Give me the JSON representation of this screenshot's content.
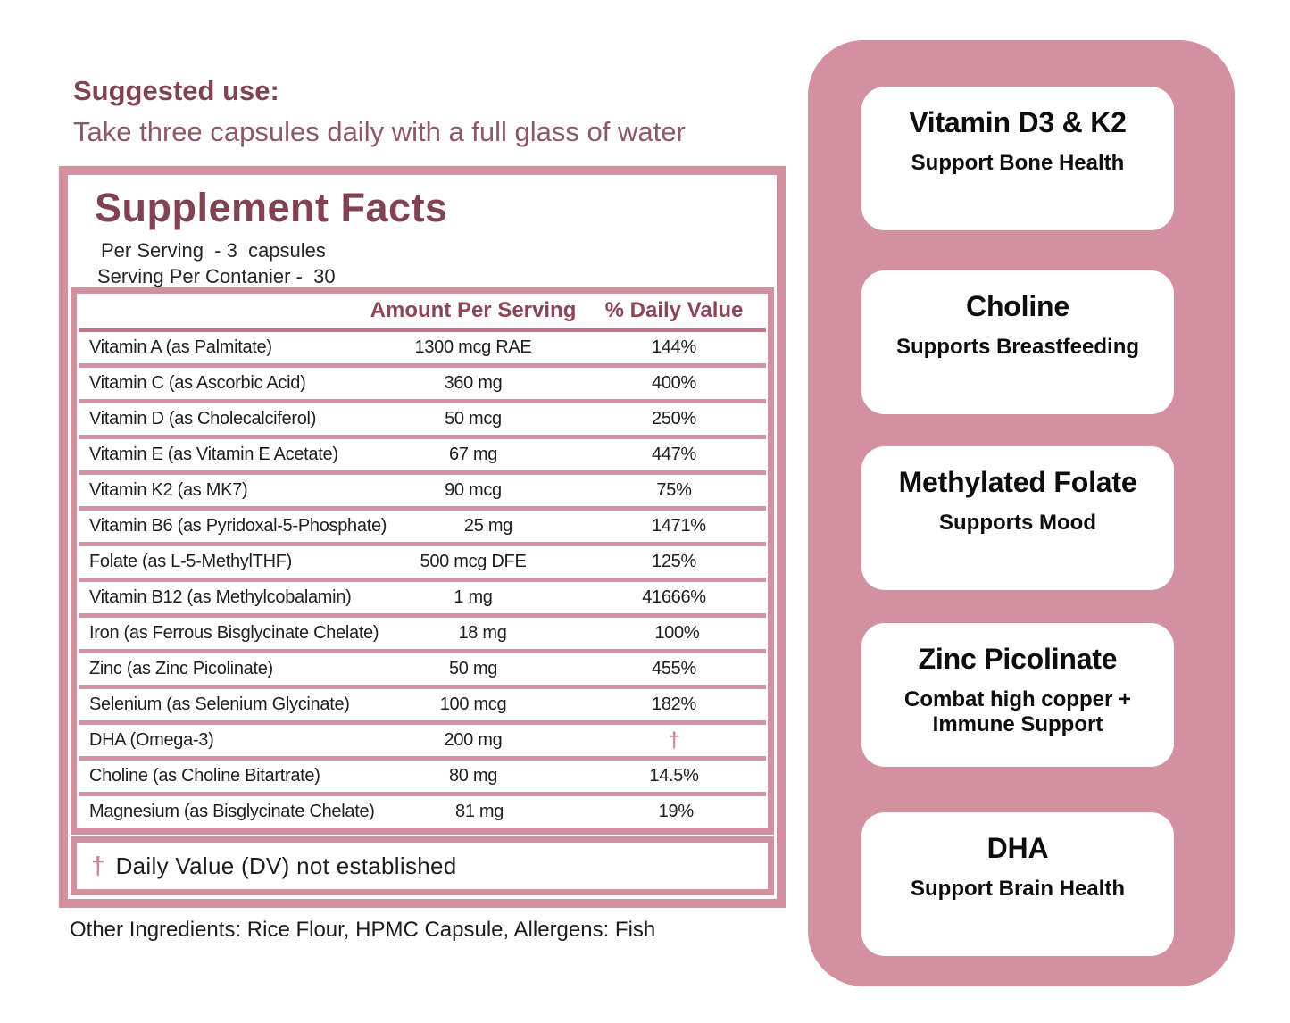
{
  "suggested_use": {
    "heading": "Suggested use:",
    "text": "Take three capsules daily with a full glass of water"
  },
  "facts": {
    "title": "Supplement Facts",
    "serving_line1": "Per Serving  - 3  capsules",
    "serving_line2": "Serving Per Contanier -  30",
    "columns": {
      "amount": "Amount Per Serving",
      "daily_value": "% Daily Value"
    },
    "rows": [
      {
        "name": "Vitamin A (as Palmitate)",
        "amount": "1300 mcg RAE",
        "dv": "144%"
      },
      {
        "name": "Vitamin C (as Ascorbic Acid)",
        "amount": "360 mg",
        "dv": "400%"
      },
      {
        "name": "Vitamin D (as Cholecalciferol)",
        "amount": "50 mcg",
        "dv": "250%"
      },
      {
        "name": "Vitamin E (as Vitamin E Acetate)",
        "amount": "67 mg",
        "dv": "447%"
      },
      {
        "name": "Vitamin K2 (as MK7)",
        "amount": "90 mcg",
        "dv": "75%"
      },
      {
        "name": "Vitamin B6 (as Pyridoxal-5-Phosphate)",
        "amount": "25 mg",
        "dv": "1471%"
      },
      {
        "name": "Folate (as L-5-MethylTHF)",
        "amount": "500 mcg DFE",
        "dv": "125%"
      },
      {
        "name": "Vitamin B12 (as Methylcobalamin)",
        "amount": "1 mg",
        "dv": "41666%"
      },
      {
        "name": "Iron (as Ferrous Bisglycinate Chelate)",
        "amount": "18 mg",
        "dv": "100%"
      },
      {
        "name": "Zinc (as Zinc Picolinate)",
        "amount": "50 mg",
        "dv": "455%"
      },
      {
        "name": "Selenium (as Selenium Glycinate)",
        "amount": "100 mcg",
        "dv": "182%"
      },
      {
        "name": "DHA (Omega-3)",
        "amount": "200 mg",
        "dv": "†"
      },
      {
        "name": "Choline (as Choline Bitartrate)",
        "amount": "80 mg",
        "dv": "14.5%"
      },
      {
        "name": "Magnesium (as Bisglycinate Chelate)",
        "amount": "81 mg",
        "dv": "19%"
      }
    ],
    "footnote": {
      "dagger": "†",
      "text": "Daily Value (DV) not established"
    }
  },
  "other_ingredients": "Other Ingredients: Rice Flour, HPMC Capsule, Allergens: Fish",
  "highlights": [
    {
      "title": "Vitamin D3 & K2",
      "subtitle": "Support Bone Health"
    },
    {
      "title": "Choline",
      "subtitle": "Supports Breastfeeding"
    },
    {
      "title": "Methylated Folate",
      "subtitle": "Supports Mood"
    },
    {
      "title": "Zinc Picolinate",
      "subtitle": "Combat high copper + Immune Support"
    },
    {
      "title": "DHA",
      "subtitle": "Support Brain Health"
    }
  ],
  "colors": {
    "pink": "#D3909F",
    "header_separator": "#C77386",
    "maroon": "#7F4351",
    "column_header_maroon": "#8B4657",
    "mauve_subtitle": "#8E5966",
    "text_dark": "#1F1F1F",
    "dagger_pink": "#C98B98"
  }
}
